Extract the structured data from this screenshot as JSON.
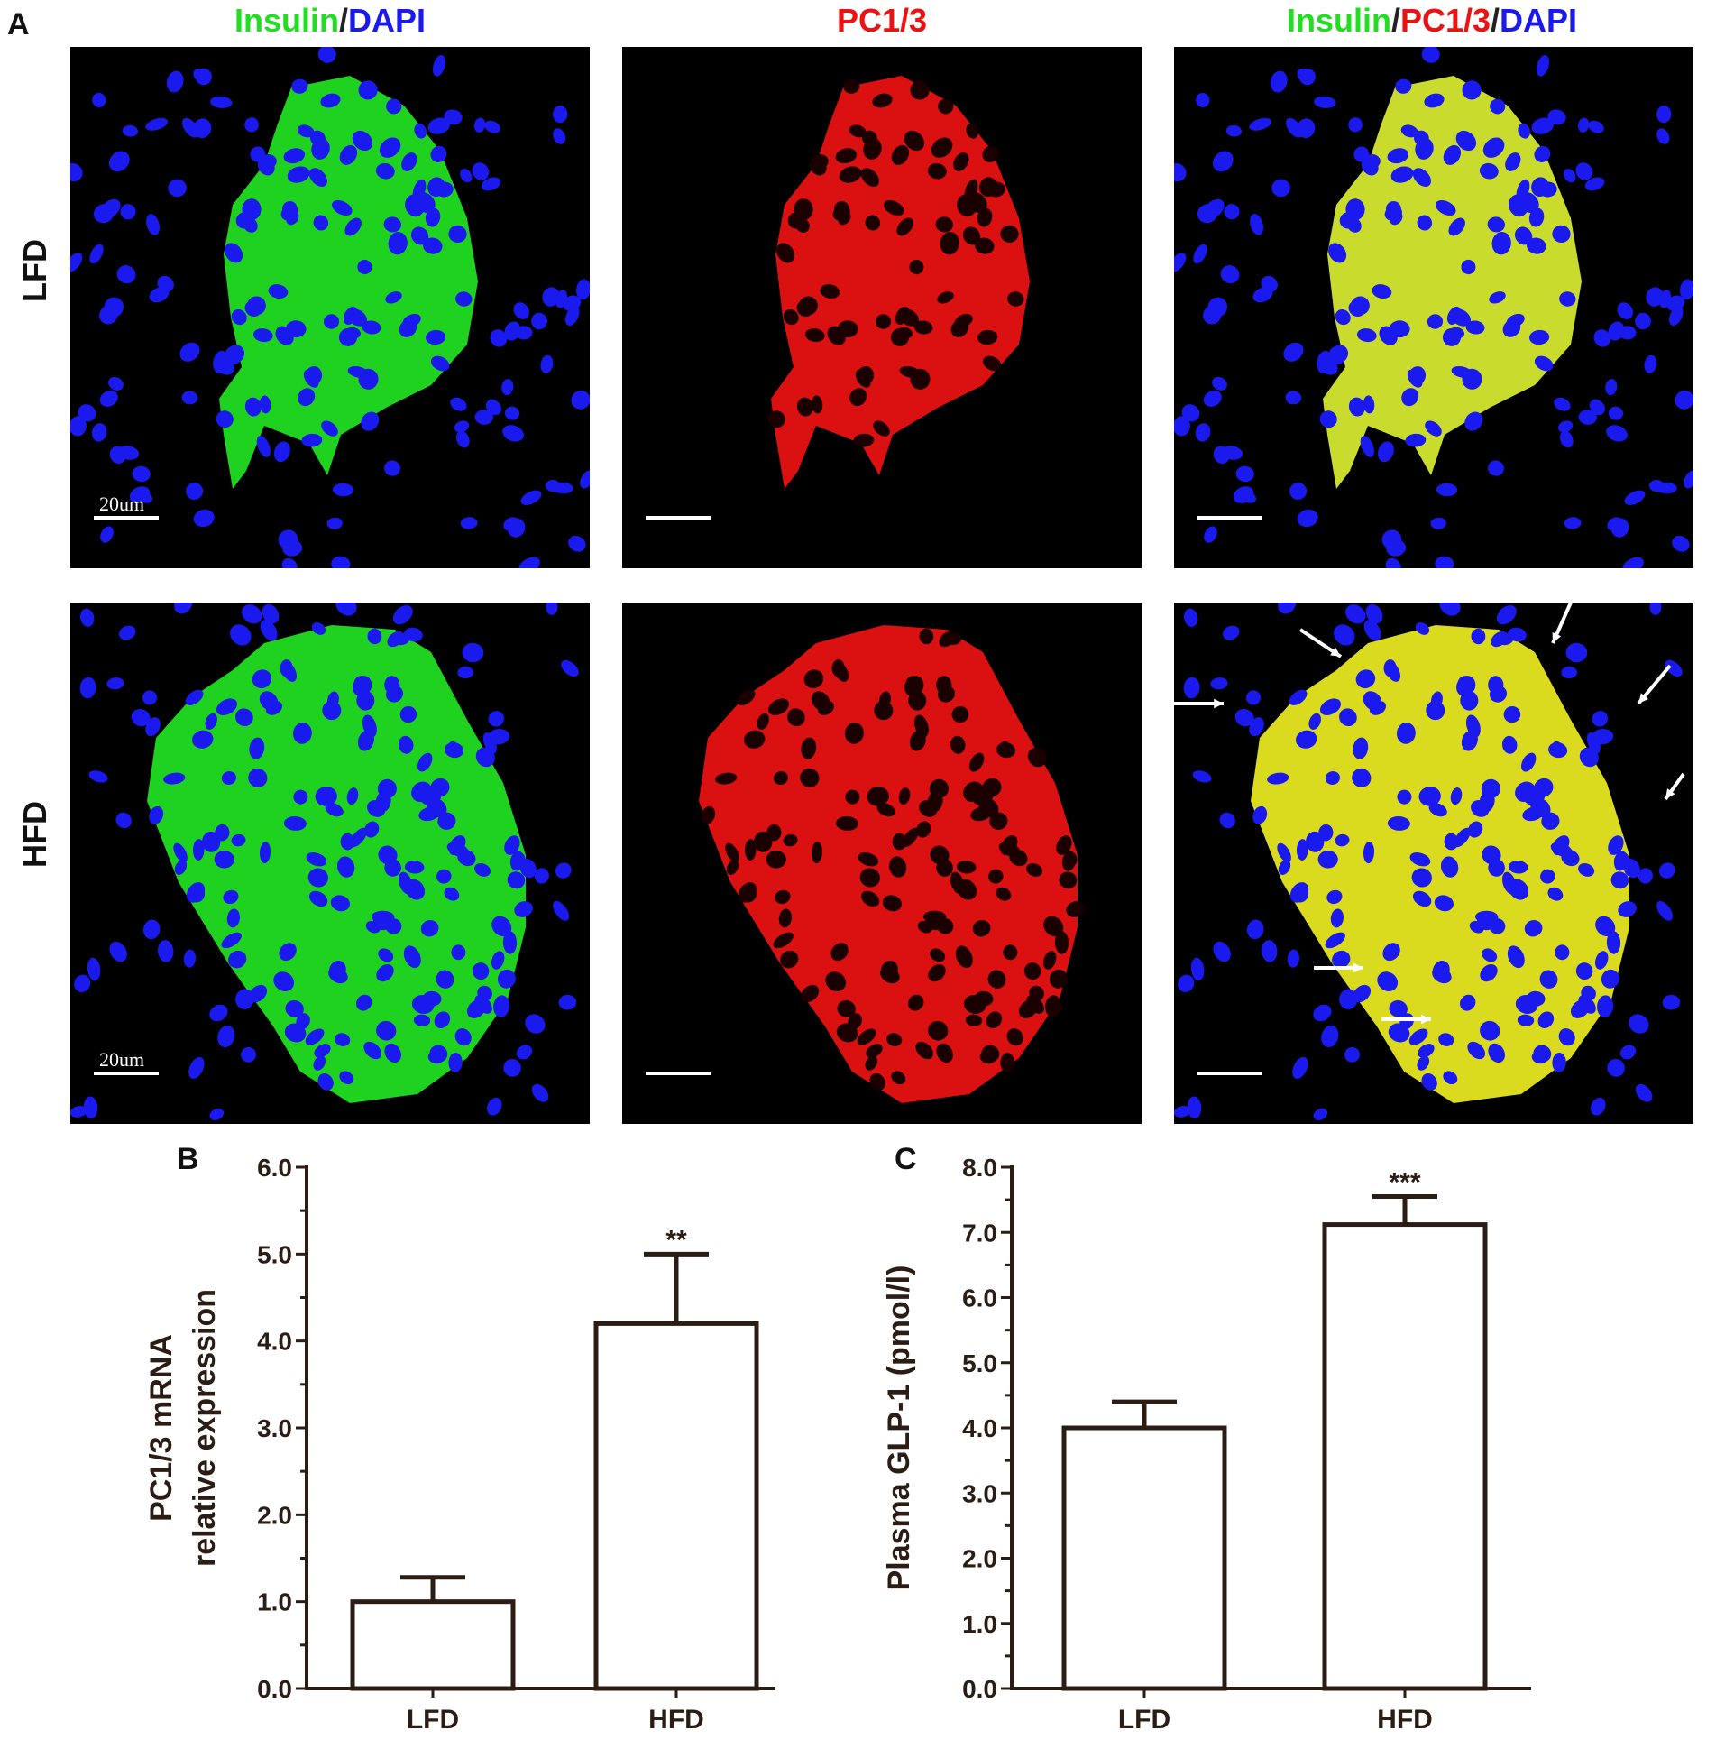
{
  "figure": {
    "panel_labels": {
      "a": "A",
      "b": "B",
      "c": "C"
    },
    "col_headers": [
      {
        "parts": [
          {
            "text": "Insulin",
            "color": "#22dd22"
          },
          {
            "text": "/",
            "color": "#222222"
          },
          {
            "text": "DAPI",
            "color": "#1a1aee"
          }
        ]
      },
      {
        "parts": [
          {
            "text": "PC1/3",
            "color": "#ee1111"
          }
        ]
      },
      {
        "parts": [
          {
            "text": "Insulin",
            "color": "#22dd22"
          },
          {
            "text": "/",
            "color": "#222222"
          },
          {
            "text": "PC1/3",
            "color": "#ee1111"
          },
          {
            "text": "/",
            "color": "#222222"
          },
          {
            "text": "DAPI",
            "color": "#1a1aee"
          }
        ]
      }
    ],
    "row_labels": [
      "LFD",
      "HFD"
    ],
    "scale_bar_label": "20um",
    "channel_colors": {
      "insulin": "#22dd22",
      "pc13": "#ee1111",
      "dapi": "#1a1aee",
      "merge": "#eeee22"
    }
  },
  "chart_data": [
    {
      "type": "bar",
      "panel": "B",
      "categories": [
        "LFD",
        "HFD"
      ],
      "values": [
        1.0,
        4.2
      ],
      "error_upper": [
        1.28,
        5.0
      ],
      "significance": [
        "",
        "**"
      ],
      "ylabel_lines": [
        "PC1/3 mRNA",
        "relative expression"
      ],
      "ylim": [
        0,
        6
      ],
      "yticks": [
        "0.0",
        "1.0",
        "2.0",
        "3.0",
        "4.0",
        "5.0",
        "6.0"
      ],
      "xlabel": "",
      "grid": false
    },
    {
      "type": "bar",
      "panel": "C",
      "categories": [
        "LFD",
        "HFD"
      ],
      "values": [
        4.0,
        7.12
      ],
      "error_upper": [
        4.4,
        7.55
      ],
      "significance": [
        "",
        "***"
      ],
      "ylabel_lines": [
        "Plasma GLP-1 (pmol/l)"
      ],
      "ylim": [
        0,
        8
      ],
      "yticks": [
        "0.0",
        "1.0",
        "2.0",
        "3.0",
        "4.0",
        "5.0",
        "6.0",
        "7.0",
        "8.0"
      ],
      "xlabel": "",
      "grid": false
    }
  ]
}
